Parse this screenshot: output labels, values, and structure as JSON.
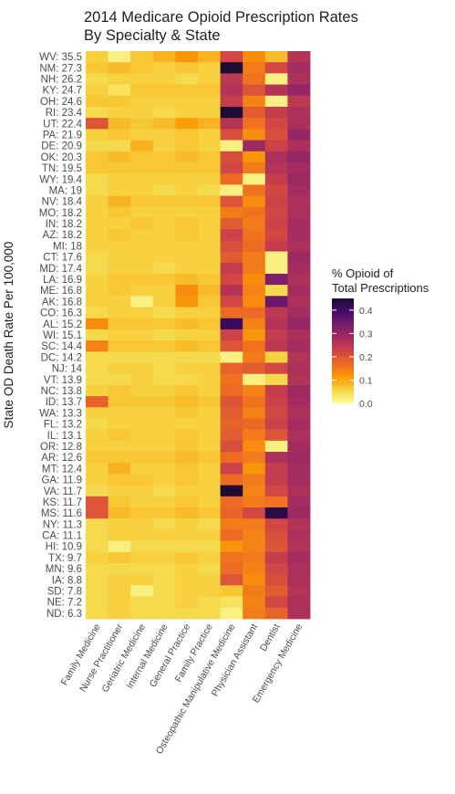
{
  "chart_data": {
    "type": "heatmap",
    "title_lines": [
      "2014 Medicare Opioid Prescription Rates",
      "By Specialty & State"
    ],
    "ylabel": "State OD Death Rate Per 100,000",
    "xlabel": "",
    "specialties": [
      "Family Medicine",
      "Nurse Practitioner",
      "Geriatric Medicine",
      "Internal Medicine",
      "General Practice",
      "Family Practice",
      "Osteopathic Manipulative Medicine",
      "Physician Assistant",
      "Dentist",
      "Emergency Medicine"
    ],
    "states": [
      {
        "label": "WV:  35.5",
        "values": [
          0.06,
          0.02,
          0.07,
          0.09,
          0.12,
          0.09,
          0.22,
          0.13,
          0.08,
          0.26
        ]
      },
      {
        "label": "NM:  27.3",
        "values": [
          0.07,
          0.08,
          0.07,
          0.06,
          0.07,
          0.06,
          0.45,
          0.15,
          0.22,
          0.28
        ]
      },
      {
        "label": "NH:  26.2",
        "values": [
          0.05,
          0.06,
          0.06,
          0.06,
          0.05,
          0.06,
          0.25,
          0.16,
          0.02,
          0.27
        ]
      },
      {
        "label": "KY:  24.7",
        "values": [
          0.06,
          0.04,
          0.07,
          0.07,
          0.07,
          0.07,
          0.26,
          0.2,
          0.26,
          0.3
        ]
      },
      {
        "label": "OH:  24.6",
        "values": [
          0.07,
          0.07,
          0.06,
          0.06,
          0.06,
          0.06,
          0.24,
          0.14,
          0.02,
          0.25
        ]
      },
      {
        "label": "RI:  23.4",
        "values": [
          0.05,
          0.06,
          0.06,
          0.05,
          0.06,
          0.06,
          0.45,
          0.19,
          0.24,
          0.27
        ]
      },
      {
        "label": "UT:  22.4",
        "values": [
          0.2,
          0.08,
          0.07,
          0.08,
          0.11,
          0.09,
          0.26,
          0.16,
          0.22,
          0.27
        ]
      },
      {
        "label": "PA:  21.9",
        "values": [
          0.06,
          0.07,
          0.06,
          0.06,
          0.07,
          0.06,
          0.21,
          0.13,
          0.21,
          0.3
        ]
      },
      {
        "label": "DE:  20.9",
        "values": [
          0.05,
          0.05,
          0.09,
          0.06,
          0.07,
          0.06,
          0.02,
          0.29,
          0.23,
          0.27
        ]
      },
      {
        "label": "OK:  20.3",
        "values": [
          0.07,
          0.08,
          0.07,
          0.07,
          0.08,
          0.07,
          0.21,
          0.12,
          0.27,
          0.3
        ]
      },
      {
        "label": "TN:  19.5",
        "values": [
          0.07,
          0.07,
          0.07,
          0.07,
          0.07,
          0.07,
          0.22,
          0.15,
          0.26,
          0.28
        ]
      },
      {
        "label": "WY:  19.4",
        "values": [
          0.05,
          0.06,
          0.06,
          0.06,
          0.06,
          0.06,
          0.17,
          0.02,
          0.24,
          0.29
        ]
      },
      {
        "label": "MA:  19",
        "values": [
          0.05,
          0.06,
          0.06,
          0.05,
          0.06,
          0.05,
          0.02,
          0.16,
          0.22,
          0.28
        ]
      },
      {
        "label": "NV:  18.4",
        "values": [
          0.06,
          0.09,
          0.07,
          0.07,
          0.07,
          0.07,
          0.2,
          0.13,
          0.23,
          0.27
        ]
      },
      {
        "label": "MO:  18.2",
        "values": [
          0.06,
          0.07,
          0.06,
          0.06,
          0.06,
          0.06,
          0.15,
          0.16,
          0.22,
          0.27
        ]
      },
      {
        "label": "IN:  18.2",
        "values": [
          0.06,
          0.06,
          0.07,
          0.06,
          0.07,
          0.06,
          0.19,
          0.15,
          0.23,
          0.28
        ]
      },
      {
        "label": "AZ:  18.2",
        "values": [
          0.06,
          0.07,
          0.06,
          0.06,
          0.07,
          0.06,
          0.23,
          0.16,
          0.22,
          0.28
        ]
      },
      {
        "label": "MI:  18",
        "values": [
          0.06,
          0.06,
          0.06,
          0.06,
          0.06,
          0.06,
          0.21,
          0.17,
          0.24,
          0.27
        ]
      },
      {
        "label": "CT:  17.6",
        "values": [
          0.05,
          0.06,
          0.06,
          0.06,
          0.06,
          0.06,
          0.19,
          0.15,
          0.02,
          0.29
        ]
      },
      {
        "label": "MD:  17.4",
        "values": [
          0.05,
          0.06,
          0.06,
          0.05,
          0.06,
          0.06,
          0.24,
          0.15,
          0.02,
          0.28
        ]
      },
      {
        "label": "LA:  16.9",
        "values": [
          0.06,
          0.07,
          0.07,
          0.07,
          0.08,
          0.07,
          0.22,
          0.13,
          0.33,
          0.27
        ]
      },
      {
        "label": "ME:  16.8",
        "values": [
          0.06,
          0.07,
          0.06,
          0.06,
          0.13,
          0.08,
          0.26,
          0.14,
          0.05,
          0.28
        ]
      },
      {
        "label": "AK:  16.8",
        "values": [
          0.06,
          0.06,
          0.02,
          0.06,
          0.12,
          0.07,
          0.22,
          0.13,
          0.35,
          0.27
        ]
      },
      {
        "label": "CO:  16.3",
        "values": [
          0.05,
          0.06,
          0.06,
          0.05,
          0.06,
          0.06,
          0.17,
          0.17,
          0.25,
          0.28
        ]
      },
      {
        "label": "AL:  15.2",
        "values": [
          0.13,
          0.07,
          0.07,
          0.07,
          0.08,
          0.07,
          0.41,
          0.14,
          0.26,
          0.3
        ]
      },
      {
        "label": "WI:  15.1",
        "values": [
          0.05,
          0.06,
          0.06,
          0.05,
          0.06,
          0.06,
          0.23,
          0.12,
          0.24,
          0.27
        ]
      },
      {
        "label": "SC:  14.4",
        "values": [
          0.14,
          0.07,
          0.07,
          0.07,
          0.08,
          0.07,
          0.2,
          0.16,
          0.25,
          0.28
        ]
      },
      {
        "label": "DC:  14.2",
        "values": [
          0.05,
          0.05,
          0.05,
          0.05,
          0.05,
          0.05,
          0.02,
          0.15,
          0.06,
          0.26
        ]
      },
      {
        "label": "NJ:  14",
        "values": [
          0.05,
          0.06,
          0.06,
          0.05,
          0.06,
          0.06,
          0.18,
          0.19,
          0.22,
          0.27
        ]
      },
      {
        "label": "VT:  13.9",
        "values": [
          0.05,
          0.05,
          0.06,
          0.05,
          0.05,
          0.06,
          0.16,
          0.02,
          0.05,
          0.26
        ]
      },
      {
        "label": "NC:  13.8",
        "values": [
          0.06,
          0.07,
          0.06,
          0.06,
          0.07,
          0.06,
          0.17,
          0.14,
          0.24,
          0.29
        ]
      },
      {
        "label": "ID:  13.7",
        "values": [
          0.18,
          0.07,
          0.07,
          0.07,
          0.08,
          0.07,
          0.2,
          0.16,
          0.23,
          0.28
        ]
      },
      {
        "label": "WA:  13.3",
        "values": [
          0.06,
          0.06,
          0.06,
          0.06,
          0.07,
          0.06,
          0.19,
          0.14,
          0.22,
          0.27
        ]
      },
      {
        "label": "FL:  13.2",
        "values": [
          0.05,
          0.06,
          0.06,
          0.06,
          0.06,
          0.06,
          0.18,
          0.17,
          0.23,
          0.28
        ]
      },
      {
        "label": "IL:  13.1",
        "values": [
          0.06,
          0.07,
          0.06,
          0.06,
          0.07,
          0.06,
          0.19,
          0.15,
          0.2,
          0.27
        ]
      },
      {
        "label": "OR:  12.8",
        "values": [
          0.06,
          0.06,
          0.06,
          0.06,
          0.07,
          0.06,
          0.21,
          0.13,
          0.02,
          0.28
        ]
      },
      {
        "label": "AR:  12.6",
        "values": [
          0.07,
          0.07,
          0.07,
          0.07,
          0.08,
          0.07,
          0.17,
          0.15,
          0.27,
          0.29
        ]
      },
      {
        "label": "MT:  12.4",
        "values": [
          0.06,
          0.09,
          0.06,
          0.06,
          0.07,
          0.06,
          0.23,
          0.12,
          0.24,
          0.28
        ]
      },
      {
        "label": "GA:  11.9",
        "values": [
          0.06,
          0.07,
          0.07,
          0.06,
          0.07,
          0.06,
          0.17,
          0.15,
          0.24,
          0.28
        ]
      },
      {
        "label": "VA:  11.7",
        "values": [
          0.05,
          0.06,
          0.06,
          0.05,
          0.06,
          0.06,
          0.45,
          0.14,
          0.22,
          0.27
        ]
      },
      {
        "label": "KS:  11.7",
        "values": [
          0.2,
          0.07,
          0.06,
          0.06,
          0.07,
          0.06,
          0.17,
          0.15,
          0.16,
          0.28
        ]
      },
      {
        "label": "MS:  11.6",
        "values": [
          0.2,
          0.08,
          0.07,
          0.07,
          0.08,
          0.07,
          0.18,
          0.22,
          0.43,
          0.29
        ]
      },
      {
        "label": "NY:  11.3",
        "values": [
          0.05,
          0.06,
          0.06,
          0.05,
          0.06,
          0.05,
          0.15,
          0.15,
          0.22,
          0.26
        ]
      },
      {
        "label": "CA:  11.1",
        "values": [
          0.05,
          0.06,
          0.06,
          0.06,
          0.06,
          0.06,
          0.17,
          0.14,
          0.21,
          0.27
        ]
      },
      {
        "label": "HI:  10.9",
        "values": [
          0.05,
          0.02,
          0.05,
          0.05,
          0.05,
          0.05,
          0.12,
          0.14,
          0.2,
          0.26
        ]
      },
      {
        "label": "TX:  9.7",
        "values": [
          0.06,
          0.07,
          0.06,
          0.06,
          0.07,
          0.06,
          0.16,
          0.15,
          0.24,
          0.28
        ]
      },
      {
        "label": "MN:  9.6",
        "values": [
          0.05,
          0.05,
          0.05,
          0.05,
          0.06,
          0.05,
          0.17,
          0.14,
          0.22,
          0.27
        ]
      },
      {
        "label": "IA:  8.8",
        "values": [
          0.05,
          0.06,
          0.06,
          0.05,
          0.06,
          0.06,
          0.2,
          0.13,
          0.21,
          0.27
        ]
      },
      {
        "label": "SD:  7.8",
        "values": [
          0.05,
          0.06,
          0.02,
          0.05,
          0.06,
          0.06,
          0.07,
          0.15,
          0.19,
          0.26
        ]
      },
      {
        "label": "NE:  7.2",
        "values": [
          0.05,
          0.06,
          0.05,
          0.05,
          0.06,
          0.05,
          0.04,
          0.14,
          0.22,
          0.27
        ]
      },
      {
        "label": "ND:  6.3",
        "values": [
          0.05,
          0.06,
          0.05,
          0.05,
          0.05,
          0.05,
          0.02,
          0.15,
          0.18,
          0.27
        ]
      }
    ],
    "legend": {
      "title_lines": [
        "% Opioid of",
        "Total Prescriptions"
      ],
      "ticks": [
        0.0,
        0.1,
        0.2,
        0.3,
        0.4
      ],
      "tick_labels": [
        "0.0",
        "0.1",
        "0.2",
        "0.3",
        "0.4"
      ],
      "range": [
        0.0,
        0.45
      ],
      "palette": "inferno-reversed",
      "placement": "right"
    }
  }
}
